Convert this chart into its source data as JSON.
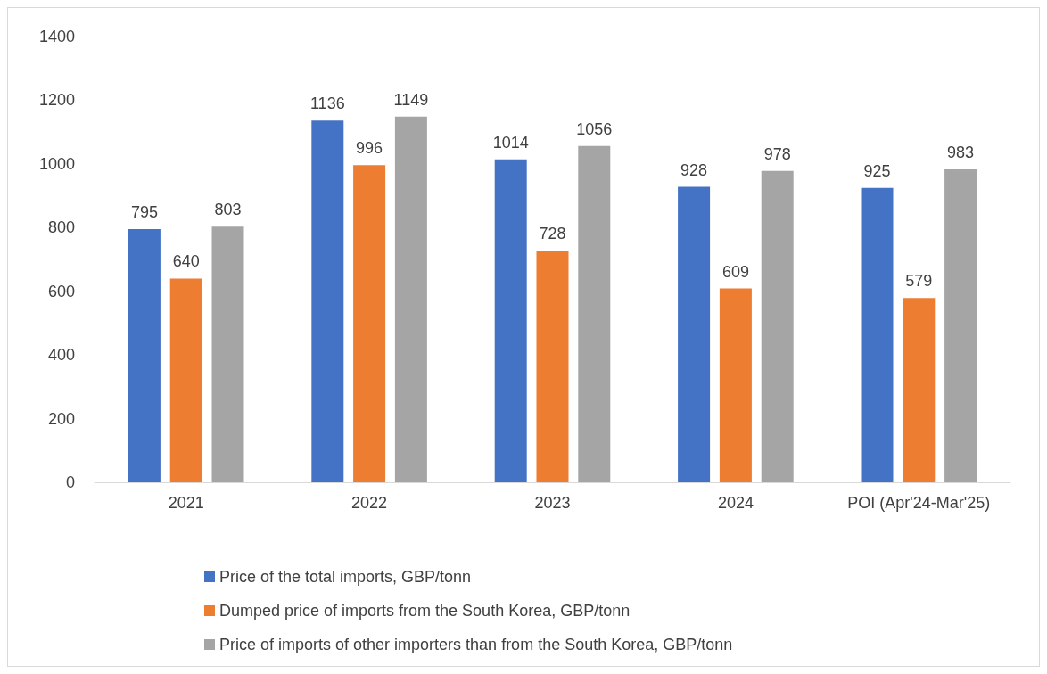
{
  "chart_data": {
    "type": "bar",
    "categories": [
      "2021",
      "2022",
      "2023",
      "2024",
      "POI (Apr'24-Mar'25)"
    ],
    "series": [
      {
        "name": "Price of the total imports, GBP/tonn",
        "color": "#4472c4",
        "values": [
          795,
          1136,
          1014,
          928,
          925
        ]
      },
      {
        "name": "Dumped price of imports from the South Korea, GBP/tonn",
        "color": "#ed7d31",
        "values": [
          640,
          996,
          728,
          609,
          579
        ]
      },
      {
        "name": "Price of imports of other importers than from the South Korea, GBP/tonn",
        "color": "#a5a5a5",
        "values": [
          803,
          1149,
          1056,
          978,
          983
        ]
      }
    ],
    "ylim": [
      0,
      1400
    ],
    "yticks": [
      0,
      200,
      400,
      600,
      800,
      1000,
      1200,
      1400
    ],
    "grid": false,
    "legend": "bottom",
    "data_labels": true
  }
}
